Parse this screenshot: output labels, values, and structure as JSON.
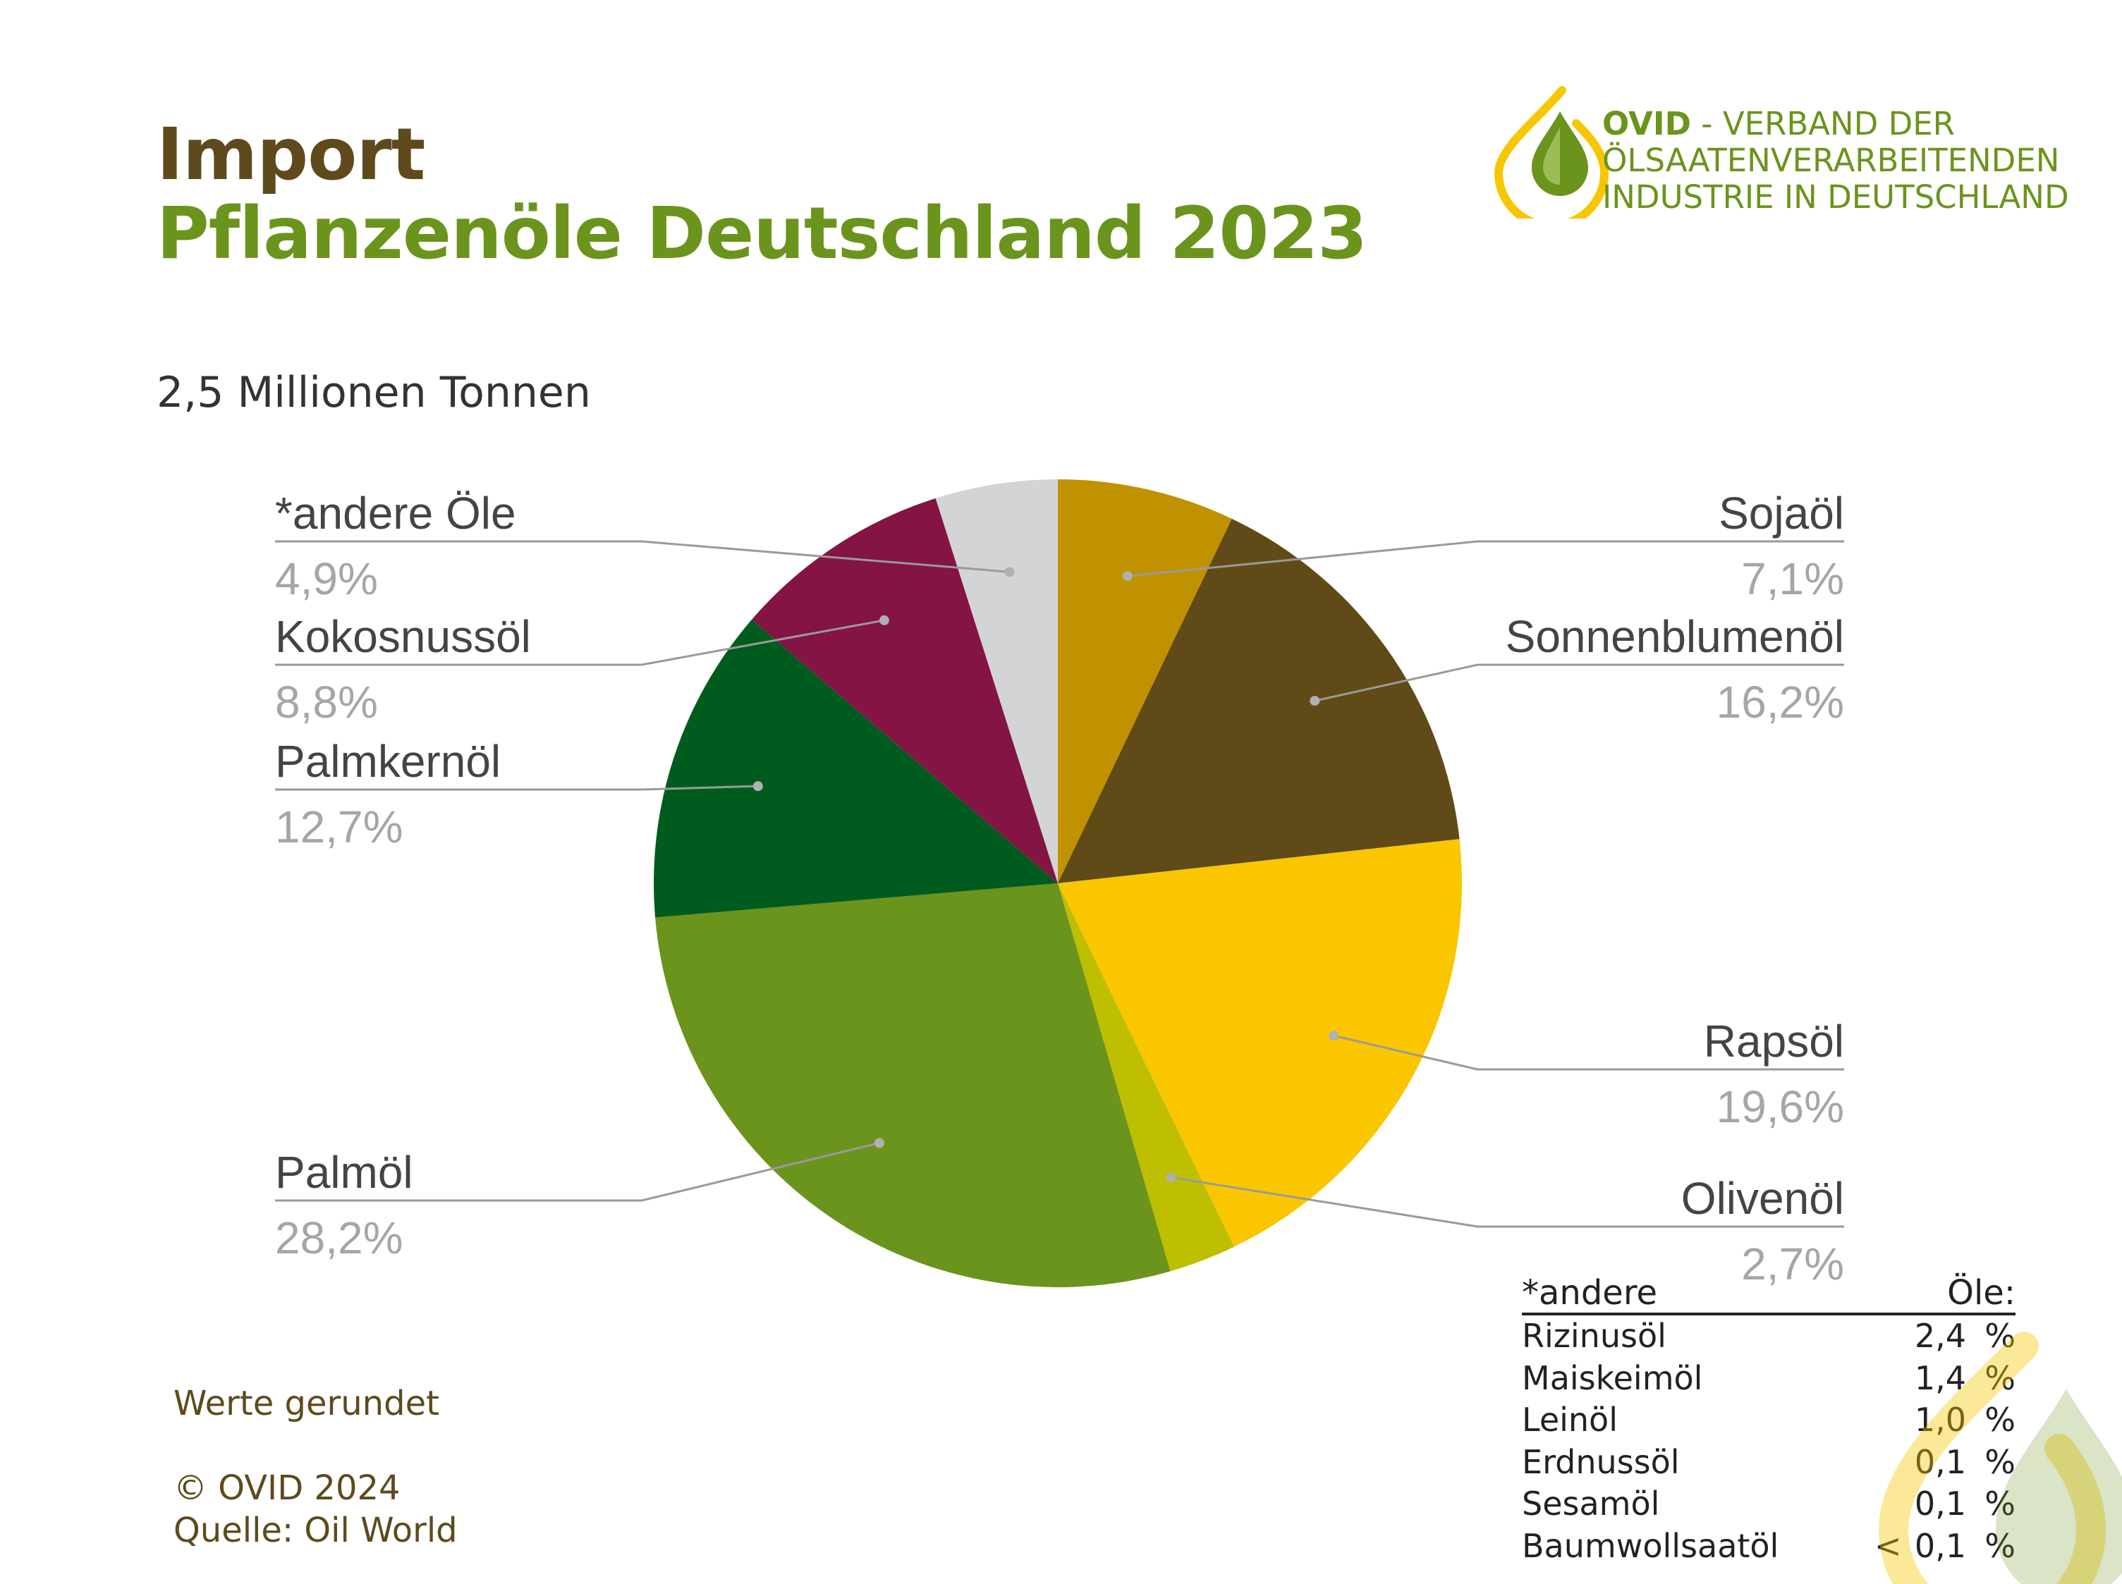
{
  "title": {
    "line1": "Import",
    "line2": "Pflanzenöle Deutschland 2023"
  },
  "subtitle": "2,5 Millionen Tonnen",
  "logo": {
    "brand": "OVID",
    "text_line1": " - VERBAND DER",
    "text_line2": "ÖLSAATENVERARBEITENDEN",
    "text_line3": "INDUSTRIE IN DEUTSCHLAND",
    "icon": "oil-drop-icon"
  },
  "chart_data": {
    "type": "pie",
    "unit": "%",
    "slices": [
      {
        "label": "Sojaöl",
        "value": 7.1,
        "display": "7,1%",
        "color": "#c09200"
      },
      {
        "label": "Sonnenblumenöl",
        "value": 16.2,
        "display": "16,2%",
        "color": "#604a18"
      },
      {
        "label": "Rapsöl",
        "value": 19.6,
        "display": "19,6%",
        "color": "#fac600"
      },
      {
        "label": "Olivenöl",
        "value": 2.7,
        "display": "2,7%",
        "color": "#bdbf00"
      },
      {
        "label": "Palmöl",
        "value": 28.2,
        "display": "28,2%",
        "color": "#6b941c"
      },
      {
        "label": "Palmkernöl",
        "value": 12.7,
        "display": "12,7%",
        "color": "#005c1e"
      },
      {
        "label": "Kokosnussöl",
        "value": 8.8,
        "display": "8,8%",
        "color": "#831443"
      },
      {
        "label": "*andere Öle",
        "value": 4.9,
        "display": "4,9%",
        "color": "#d3d4d6"
      }
    ]
  },
  "others": {
    "header_left": "*andere",
    "header_right": "Öle:",
    "rows": [
      {
        "name": "Rizinusöl",
        "lt": "",
        "value": "2,4",
        "pct": "%"
      },
      {
        "name": "Maiskeimöl",
        "lt": "",
        "value": "1,4",
        "pct": "%"
      },
      {
        "name": "Leinöl",
        "lt": "",
        "value": "1,0",
        "pct": "%"
      },
      {
        "name": "Erdnussöl",
        "lt": "",
        "value": "0,1",
        "pct": "%"
      },
      {
        "name": "Sesamöl",
        "lt": "",
        "value": "0,1",
        "pct": "%"
      },
      {
        "name": "Baumwollsaatöl",
        "lt": "<",
        "value": "0,1",
        "pct": "%"
      }
    ]
  },
  "footer": {
    "note": "Werte gerundet",
    "copyright": "© OVID 2024",
    "source": "Quelle: Oil World"
  }
}
